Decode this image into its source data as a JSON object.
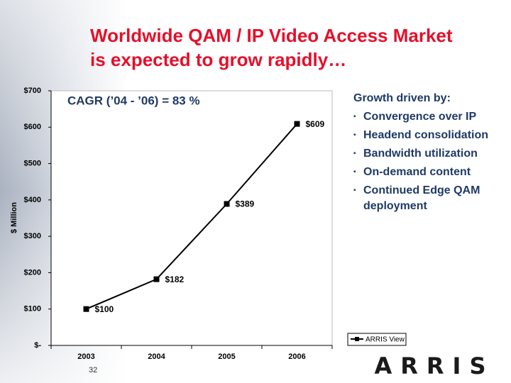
{
  "chart_data": {
    "type": "line",
    "title": [
      "Worldwide QAM / IP Video Access Market",
      "is expected to grow rapidly…"
    ],
    "annotation": "CAGR (’04 - ’06) = 83 %",
    "y_label": "$ Million",
    "categories": [
      "2003",
      "2004",
      "2005",
      "2006"
    ],
    "series": [
      {
        "name": "ARRIS View",
        "color": "#000000",
        "values": [
          100,
          182,
          389,
          609
        ],
        "value_labels": [
          "$100",
          "$182",
          "$389",
          "$609"
        ]
      }
    ],
    "ylim": [
      0,
      700
    ],
    "yticks": [
      {
        "value": 0,
        "label": "$-"
      },
      {
        "value": 100,
        "label": "$100"
      },
      {
        "value": 200,
        "label": "$200"
      },
      {
        "value": 300,
        "label": "$300"
      },
      {
        "value": 400,
        "label": "$400"
      },
      {
        "value": 500,
        "label": "$500"
      },
      {
        "value": 600,
        "label": "$600"
      },
      {
        "value": 700,
        "label": "$700"
      }
    ],
    "grid": false,
    "legend": "lower right"
  },
  "slide": {
    "bullets_heading": "Growth driven by:",
    "bullets": [
      "Convergence over IP",
      "Headend consolidation",
      "Bandwidth utilization",
      "On-demand content",
      "Continued Edge QAM deployment"
    ],
    "page_number": "32",
    "logo": "ARRIS"
  }
}
